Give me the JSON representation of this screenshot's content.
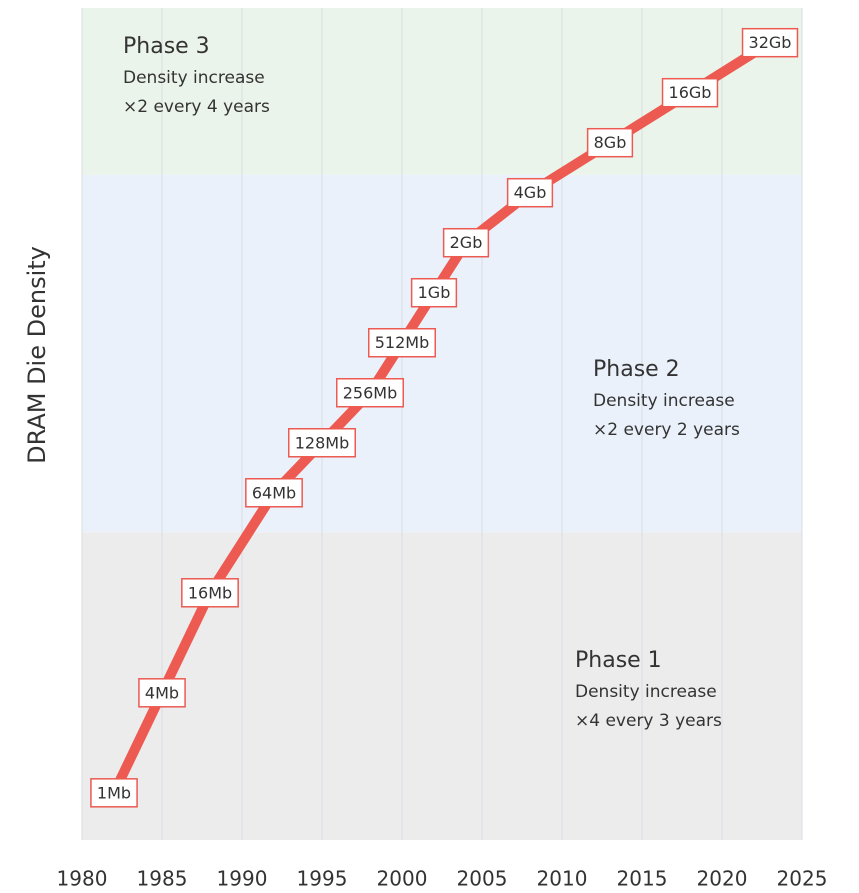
{
  "chart_data": {
    "type": "line",
    "y_label": "DRAM Die Density",
    "x": [
      1982,
      1985,
      1988,
      1992,
      1995,
      1998,
      2000,
      2002,
      2004,
      2008,
      2013,
      2018,
      2023
    ],
    "series": [
      {
        "color": "#ec5a51",
        "values": [
          1,
          4,
          16,
          64,
          128,
          256,
          512,
          1024,
          2048,
          4096,
          8192,
          16384,
          32768
        ],
        "value_labels": [
          "1Mb",
          "4Mb",
          "16Mb",
          "64Mb",
          "128Mb",
          "256Mb",
          "512Mb",
          "1Gb",
          "2Gb",
          "4Gb",
          "8Gb",
          "16Gb",
          "32Gb"
        ]
      }
    ],
    "xlim": [
      1980,
      2025
    ],
    "xticks": [
      1980,
      1985,
      1990,
      1995,
      2000,
      2005,
      2010,
      2015,
      2020,
      2025
    ],
    "ylim": [
      0.52,
      53000
    ],
    "log_y": true,
    "log_base": 2,
    "grid": true,
    "bands": [
      {
        "name": "Phase 1",
        "lines": [
          "Density increase",
          "×4 every 3 years"
        ],
        "ylim": [
          0.52,
          37
        ],
        "color": "#ececec",
        "text_color": "#555555"
      },
      {
        "name": "Phase 2",
        "lines": [
          "Density increase",
          "×2 every 2 years"
        ],
        "ylim": [
          37,
          5256
        ],
        "color": "#eaf1fa",
        "text_color": "#2a3f6b"
      },
      {
        "name": "Phase 3",
        "lines": [
          "Density increase",
          "×2 every 4 years"
        ],
        "ylim": [
          5256,
          53000
        ],
        "color": "#ebf4ea",
        "text_color": "#43a85a"
      }
    ]
  }
}
